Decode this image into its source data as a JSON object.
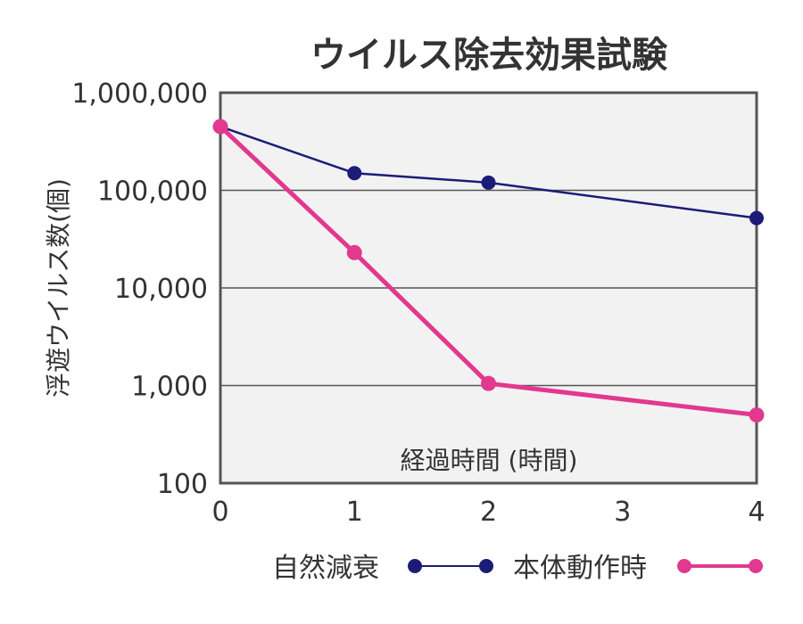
{
  "chart_data": {
    "type": "line",
    "title": "ウイルス除去効果試験",
    "xlabel": "経過時間 (時間)",
    "ylabel": "浮遊ウイルス数(個)",
    "y_scale": "log",
    "ylim": [
      100,
      1000000
    ],
    "xlim": [
      0,
      4
    ],
    "x_ticks": [
      "0",
      "1",
      "2",
      "3",
      "4"
    ],
    "y_ticks": [
      "100",
      "1,000",
      "10,000",
      "100,000",
      "1,000,000"
    ],
    "grid": "horizontal",
    "legend_position": "bottom",
    "series": [
      {
        "name": "自然減衰",
        "color": "#1c1c78",
        "x": [
          0,
          1,
          2,
          4
        ],
        "y": [
          450000,
          150000,
          120000,
          52000
        ]
      },
      {
        "name": "本体動作時",
        "color": "#e2388f",
        "x": [
          0,
          1,
          2,
          4
        ],
        "y": [
          450000,
          23000,
          1050,
          500
        ]
      }
    ]
  },
  "colors": {
    "plot_background": "#f2f2f2",
    "frame": "#555555",
    "gridline": "#555555"
  }
}
